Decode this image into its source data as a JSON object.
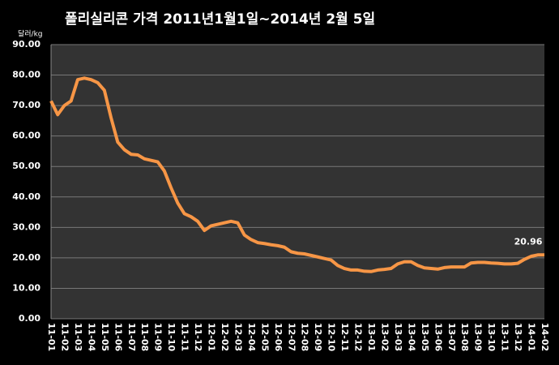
{
  "chart_data": {
    "type": "line",
    "title": "폴리실리콘 가격    2011년1월1일~2014년 2월 5일",
    "y_label": "달러/kg",
    "categories": [
      "11-01",
      null,
      "11-02",
      null,
      "11-03",
      null,
      "11-04",
      null,
      "11-05",
      null,
      "11-06",
      null,
      "11-07",
      null,
      "11-08",
      null,
      "11-09",
      null,
      "11-10",
      null,
      "11-11",
      null,
      "11-12",
      null,
      "12-01",
      null,
      "12-02",
      null,
      "12-03",
      null,
      "12-04",
      null,
      "12-05",
      null,
      "12-06",
      null,
      "12-07",
      null,
      "12-08",
      null,
      "12-09",
      null,
      "12-10",
      null,
      "12-11",
      null,
      "12-12",
      null,
      "13-01",
      null,
      "13-02",
      null,
      "13-03",
      null,
      "13-04",
      null,
      "13-05",
      null,
      "13-06",
      null,
      "13-07",
      null,
      "13-08",
      null,
      "13-09",
      null,
      "13-10",
      null,
      "13-11",
      null,
      "13-12",
      null,
      "14-01",
      null,
      "14-02"
    ],
    "series": [
      {
        "color": "#f79646",
        "values": [
          71.5,
          67,
          70,
          71.5,
          78.5,
          79,
          78.5,
          77.5,
          75,
          66,
          58,
          55.5,
          54,
          53.8,
          52.5,
          52,
          51.5,
          48.5,
          43,
          38,
          34.5,
          33.5,
          32,
          29,
          30.5,
          31,
          31.5,
          32,
          31.5,
          27.5,
          26,
          25,
          24.7,
          24.3,
          24,
          23.5,
          22,
          21.5,
          21.3,
          20.8,
          20.3,
          19.8,
          19.3,
          17.5,
          16.5,
          16,
          16,
          15.6,
          15.5,
          16,
          16.2,
          16.5,
          18,
          18.7,
          18.7,
          17.5,
          16.7,
          16.5,
          16.3,
          16.8,
          17,
          17,
          17,
          18.3,
          18.5,
          18.5,
          18.3,
          18.2,
          18,
          18,
          18.2,
          19.5,
          20.5,
          20.96,
          20.96
        ]
      }
    ],
    "labeled_point": 74,
    "ylim": [
      0,
      90
    ],
    "yticks": [
      {
        "value": 0,
        "label": "0.00"
      },
      {
        "value": 10,
        "label": "10.00"
      },
      {
        "value": 20,
        "label": "20.00"
      },
      {
        "value": 30,
        "label": "30.00"
      },
      {
        "value": 40,
        "label": "40.00"
      },
      {
        "value": 50,
        "label": "50.00"
      },
      {
        "value": 60,
        "label": "60.00"
      },
      {
        "value": 70,
        "label": "70.00"
      },
      {
        "value": 80,
        "label": "80.00"
      },
      {
        "value": 90,
        "label": "90.00"
      }
    ],
    "grid": true
  }
}
